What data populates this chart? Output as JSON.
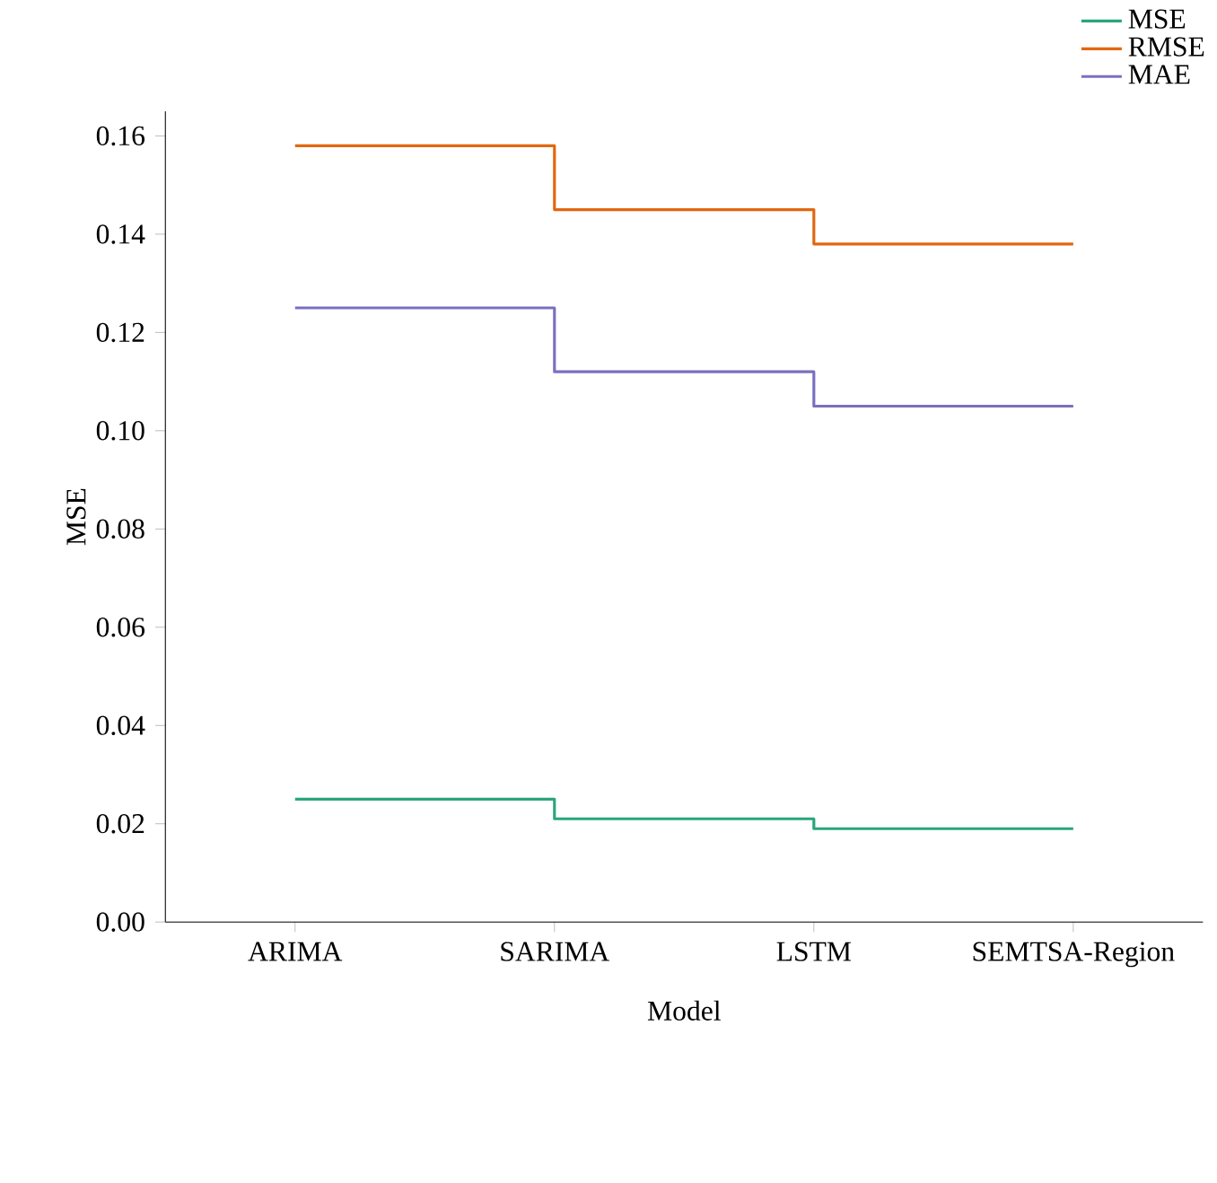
{
  "chart_data": {
    "type": "step",
    "xlabel": "Model",
    "ylabel": "MSE",
    "categories": [
      "ARIMA",
      "SARIMA",
      "LSTM",
      "SEMTSA-Region"
    ],
    "ylim": [
      0,
      0.165
    ],
    "yticks": [
      {
        "value": 0,
        "label": "0.00"
      },
      {
        "value": 0.02,
        "label": "0.02"
      },
      {
        "value": 0.04,
        "label": "0.04"
      },
      {
        "value": 0.06,
        "label": "0.06"
      },
      {
        "value": 0.08,
        "label": "0.08"
      },
      {
        "value": 0.1,
        "label": "0.10"
      },
      {
        "value": 0.12,
        "label": "0.12"
      },
      {
        "value": 0.14,
        "label": "0.14"
      },
      {
        "value": 0.16,
        "label": "0.16"
      }
    ],
    "series": [
      {
        "name": "MSE",
        "color": "#2aa57c",
        "values": [
          0.025,
          0.021,
          0.019,
          0.019
        ]
      },
      {
        "name": "RMSE",
        "color": "#e2670f",
        "values": [
          0.158,
          0.145,
          0.138,
          0.138
        ]
      },
      {
        "name": "MAE",
        "color": "#7a70c0",
        "values": [
          0.125,
          0.112,
          0.105,
          0.105
        ]
      }
    ],
    "legend": "top right",
    "grid": false
  }
}
